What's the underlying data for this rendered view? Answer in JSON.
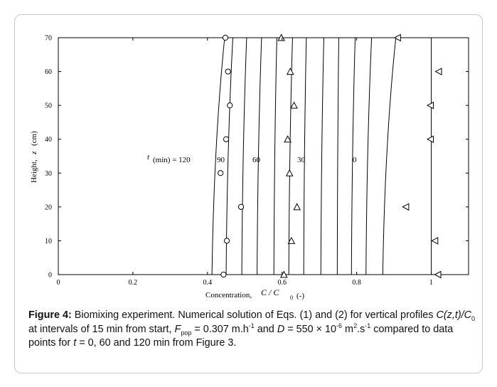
{
  "chart_data": {
    "type": "line",
    "xlabel": "Concentration,",
    "xlabel_symbol": "C / C",
    "xlabel_sub": "0",
    "xlabel_unit": "(-)",
    "ylabel": "Height,",
    "ylabel_symbol": "z",
    "ylabel_unit": "(cm)",
    "xlim": [
      0,
      1.1
    ],
    "ylim": [
      0,
      70
    ],
    "x_ticks": [
      0,
      0.2,
      0.4,
      0.6,
      0.8,
      1
    ],
    "x_tick_labels": [
      "0",
      "0.2",
      "0.4",
      "0.6",
      "0.8",
      "1"
    ],
    "y_ticks": [
      0,
      10,
      20,
      30,
      40,
      50,
      60,
      70
    ],
    "y_tick_labels": [
      "0",
      "10",
      "20",
      "30",
      "40",
      "50",
      "60",
      "70"
    ],
    "grid": false,
    "annotation": {
      "t_label": "t",
      "unit_label": "(min) = 120",
      "labels": [
        "90",
        "60",
        "30",
        "0"
      ]
    },
    "curves": [
      {
        "z": [
          0,
          70
        ],
        "x": [
          0.412,
          0.446
        ]
      },
      {
        "z": [
          0,
          70
        ],
        "x": [
          0.45,
          0.468
        ]
      },
      {
        "z": [
          0,
          70
        ],
        "x": [
          0.492,
          0.505
        ]
      },
      {
        "z": [
          0,
          70
        ],
        "x": [
          0.533,
          0.545
        ]
      },
      {
        "z": [
          0,
          70
        ],
        "x": [
          0.578,
          0.586
        ]
      },
      {
        "z": [
          0,
          70
        ],
        "x": [
          0.618,
          0.628
        ]
      },
      {
        "z": [
          0,
          70
        ],
        "x": [
          0.658,
          0.665
        ]
      },
      {
        "z": [
          0,
          70
        ],
        "x": [
          0.704,
          0.712
        ]
      },
      {
        "z": [
          0,
          70
        ],
        "x": [
          0.748,
          0.752
        ]
      },
      {
        "z": [
          0,
          70
        ],
        "x": [
          0.786,
          0.796
        ]
      },
      {
        "z": [
          0,
          70
        ],
        "x": [
          0.825,
          0.84
        ]
      },
      {
        "z": [
          0,
          70
        ],
        "x": [
          0.87,
          0.905
        ]
      },
      {
        "z": [
          0,
          70
        ],
        "x": [
          1.0,
          1.0
        ]
      }
    ],
    "series": [
      {
        "marker": "circle",
        "points": [
          [
            0.443,
            0
          ],
          [
            0.452,
            10
          ],
          [
            0.49,
            20
          ],
          [
            0.435,
            30
          ],
          [
            0.45,
            40
          ],
          [
            0.46,
            50
          ],
          [
            0.455,
            60
          ],
          [
            0.448,
            70
          ]
        ]
      },
      {
        "marker": "triangle-up",
        "points": [
          [
            0.605,
            0
          ],
          [
            0.625,
            10
          ],
          [
            0.64,
            20
          ],
          [
            0.62,
            30
          ],
          [
            0.615,
            40
          ],
          [
            0.632,
            50
          ],
          [
            0.622,
            60
          ],
          [
            0.598,
            70
          ]
        ]
      },
      {
        "marker": "triangle-left",
        "points": [
          [
            1.018,
            0
          ],
          [
            1.01,
            10
          ],
          [
            0.932,
            20
          ],
          [
            0.998,
            40
          ],
          [
            0.998,
            50
          ],
          [
            1.02,
            60
          ],
          [
            0.91,
            70
          ]
        ]
      }
    ]
  },
  "caption": {
    "figure_label": "Figure 4:",
    "text1": " Biomixing experiment. Numerical solution of Eqs. (1) and (2) for vertical profiles ",
    "expr": "C(z,t)/C",
    "expr_sub": "0",
    "text2": " at intervals of 15 min from start, ",
    "f_symbol": "F",
    "f_sub": "pop",
    "text3": " = 0.307 m.h",
    "f_exp": "-1",
    "text4": " and ",
    "d_symbol": "D",
    "text5": " = 550 × 10",
    "d_exp1": "-6",
    "text6": " m",
    "d_exp2": "2",
    "text7": ".s",
    "d_exp3": "-1",
    "text8": " compared to data points for ",
    "t_symbol": "t",
    "text9": " = 0, 60 and 120 min from Figure 3."
  }
}
